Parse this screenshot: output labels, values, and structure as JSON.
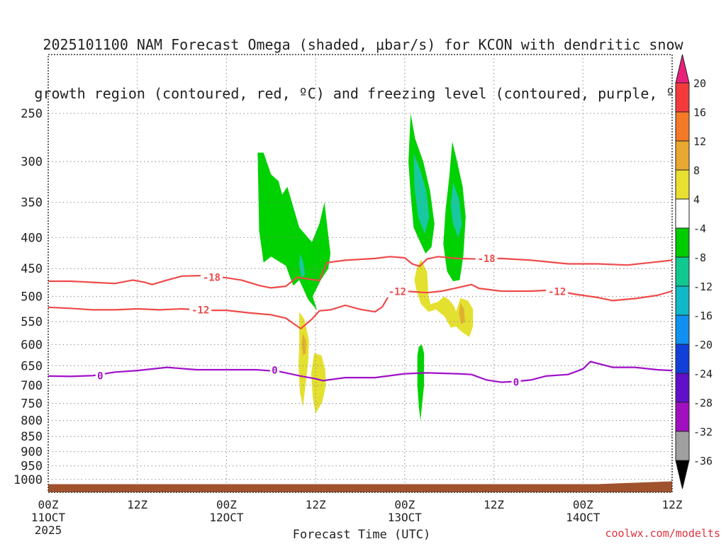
{
  "title": {
    "line1": "2025101100 NAM Forecast Omega (shaded, μbar/s) for KCON with dendritic snow",
    "line2": "growth region (contoured, red, ºC) and freezing level (contoured, purple, ºC)"
  },
  "footer": {
    "credit": "coolwx.com/modelts"
  },
  "chart_data": {
    "type": "heatmap",
    "title": "2025101100 NAM Forecast Omega (shaded, μbar/s) for KCON with dendritic snow growth region (contoured, red, ºC) and freezing level (contoured, purple, ºC)",
    "xlabel": "Forecast Time (UTC)",
    "ylabel": "",
    "x_range_hours": [
      0,
      84
    ],
    "y_range_hpa": [
      200,
      1050
    ],
    "y_scale": "log",
    "grid": true,
    "x_ticks": [
      {
        "hour": 0,
        "label": "00Z",
        "sub": "11OCT",
        "sub2": "2025"
      },
      {
        "hour": 12,
        "label": "12Z",
        "sub": "",
        "sub2": ""
      },
      {
        "hour": 24,
        "label": "00Z",
        "sub": "12OCT",
        "sub2": ""
      },
      {
        "hour": 36,
        "label": "12Z",
        "sub": "",
        "sub2": ""
      },
      {
        "hour": 48,
        "label": "00Z",
        "sub": "13OCT",
        "sub2": ""
      },
      {
        "hour": 60,
        "label": "12Z",
        "sub": "",
        "sub2": ""
      },
      {
        "hour": 72,
        "label": "00Z",
        "sub": "14OCT",
        "sub2": ""
      },
      {
        "hour": 84,
        "label": "12Z",
        "sub": "",
        "sub2": ""
      }
    ],
    "y_ticks": [
      250,
      300,
      350,
      400,
      450,
      500,
      550,
      600,
      650,
      700,
      750,
      800,
      850,
      900,
      950,
      1000
    ],
    "colorbar": {
      "labels": [
        "20",
        "16",
        "12",
        "8",
        "4",
        "-4",
        "-8",
        "-12",
        "-16",
        "-20",
        "-24",
        "-28",
        "-32",
        "-36"
      ],
      "colors": [
        "#e8207a",
        "#f43b3b",
        "#f57a28",
        "#e8a830",
        "#e8e030",
        "#ffffff",
        "#00cc00",
        "#10c890",
        "#10b8c8",
        "#1090f0",
        "#1040d8",
        "#6010c8",
        "#a010c0",
        "#a0a0a0",
        "#000000"
      ]
    },
    "shading_colors": {
      "green": "#00d100",
      "teal": "#18c8a0",
      "cyan": "#10b8c8",
      "yellow": "#e4e030",
      "gold": "#e0b030",
      "orange": "#f08a20"
    },
    "contour_colors": {
      "dgz": "#ef4a4a",
      "freezing": "#a010c8"
    },
    "ground_color": "#a0522d",
    "contours": [
      {
        "label": "-18",
        "color": "dgz",
        "points": [
          [
            0,
            472
          ],
          [
            3,
            472
          ],
          [
            6,
            474
          ],
          [
            9,
            476
          ],
          [
            11.4,
            470
          ],
          [
            13,
            474
          ],
          [
            14,
            478
          ],
          [
            16,
            470
          ],
          [
            18,
            463
          ],
          [
            21,
            462
          ],
          [
            24,
            466
          ],
          [
            26,
            470
          ],
          [
            28.5,
            480
          ],
          [
            30,
            484
          ],
          [
            32,
            481
          ],
          [
            33.5,
            465
          ],
          [
            35.5,
            469
          ],
          [
            36.5,
            471
          ],
          [
            37.5,
            440
          ],
          [
            40,
            436
          ],
          [
            44,
            433
          ],
          [
            46,
            430
          ],
          [
            48,
            432
          ],
          [
            49,
            442
          ],
          [
            50,
            446
          ],
          [
            51,
            434
          ],
          [
            52.5,
            430
          ],
          [
            55,
            433
          ],
          [
            58,
            434
          ],
          [
            61,
            433
          ],
          [
            65,
            436
          ],
          [
            70,
            442
          ],
          [
            74,
            442
          ],
          [
            78,
            444
          ],
          [
            81,
            440
          ],
          [
            84,
            436
          ]
        ],
        "label_positions": [
          [
            22,
            465
          ],
          [
            59,
            433
          ]
        ]
      },
      {
        "label": "-12",
        "color": "dgz",
        "points": [
          [
            0,
            521
          ],
          [
            3,
            523
          ],
          [
            6,
            526
          ],
          [
            9,
            526
          ],
          [
            12,
            524
          ],
          [
            15,
            526
          ],
          [
            18,
            524
          ],
          [
            21,
            527
          ],
          [
            24,
            527
          ],
          [
            27,
            532
          ],
          [
            30,
            536
          ],
          [
            32,
            543
          ],
          [
            34,
            565
          ],
          [
            35.5,
            545
          ],
          [
            36.5,
            528
          ],
          [
            38,
            526
          ],
          [
            40,
            517
          ],
          [
            42,
            525
          ],
          [
            44,
            530
          ],
          [
            45,
            520
          ],
          [
            46,
            495
          ],
          [
            48,
            490
          ],
          [
            50,
            492
          ],
          [
            51,
            493
          ],
          [
            53,
            490
          ],
          [
            55,
            484
          ],
          [
            57,
            478
          ],
          [
            58,
            485
          ],
          [
            61,
            490
          ],
          [
            65,
            490
          ],
          [
            68,
            488
          ],
          [
            71,
            496
          ],
          [
            74,
            502
          ],
          [
            76,
            508
          ],
          [
            79,
            504
          ],
          [
            82,
            498
          ],
          [
            84,
            490
          ]
        ],
        "label_positions": [
          [
            20.5,
            526
          ],
          [
            47,
            491
          ],
          [
            68.5,
            491
          ]
        ]
      },
      {
        "label": "0",
        "color": "freezing",
        "points": [
          [
            0,
            676
          ],
          [
            3,
            677
          ],
          [
            6,
            675
          ],
          [
            9,
            666
          ],
          [
            12,
            662
          ],
          [
            16,
            654
          ],
          [
            20,
            660
          ],
          [
            24,
            660
          ],
          [
            28,
            660
          ],
          [
            31,
            664
          ],
          [
            34,
            676
          ],
          [
            36,
            683
          ],
          [
            37,
            688
          ],
          [
            40,
            680
          ],
          [
            44,
            680
          ],
          [
            48,
            670
          ],
          [
            51,
            668
          ],
          [
            55,
            670
          ],
          [
            57,
            672
          ],
          [
            59,
            686
          ],
          [
            61,
            692
          ],
          [
            63,
            690
          ],
          [
            65,
            686
          ],
          [
            67,
            676
          ],
          [
            70,
            672
          ],
          [
            72,
            658
          ],
          [
            73,
            640
          ],
          [
            76,
            654
          ],
          [
            79,
            654
          ],
          [
            82,
            660
          ],
          [
            84,
            662
          ]
        ],
        "label_positions": [
          [
            7,
            675
          ],
          [
            30.5,
            661
          ],
          [
            63,
            692
          ]
        ]
      }
    ],
    "omega_regions": [
      {
        "color": "green",
        "points": [
          [
            28.2,
            290
          ],
          [
            29,
            290
          ],
          [
            30,
            315
          ],
          [
            31,
            323
          ],
          [
            31.5,
            340
          ],
          [
            32.2,
            330
          ],
          [
            33.8,
            385
          ],
          [
            35.5,
            407
          ],
          [
            36.5,
            380
          ],
          [
            37.2,
            350
          ],
          [
            37.5,
            378
          ],
          [
            38,
            425
          ],
          [
            37.7,
            450
          ],
          [
            36.7,
            470
          ],
          [
            35.6,
            500
          ],
          [
            36.2,
            527
          ],
          [
            35,
            506
          ],
          [
            33.8,
            470
          ],
          [
            33,
            480
          ],
          [
            32.7,
            470
          ],
          [
            32,
            445
          ],
          [
            30,
            430
          ],
          [
            29,
            440
          ],
          [
            28.4,
            390
          ]
        ]
      },
      {
        "color": "teal",
        "points": [
          [
            33.9,
            425
          ],
          [
            34.3,
            437
          ],
          [
            34.6,
            460
          ],
          [
            34.1,
            466
          ],
          [
            33.8,
            445
          ]
        ]
      },
      {
        "color": "green",
        "points": [
          [
            48.8,
            250
          ],
          [
            49.4,
            275
          ],
          [
            50.5,
            300
          ],
          [
            51.4,
            335
          ],
          [
            52,
            380
          ],
          [
            51.6,
            415
          ],
          [
            50.8,
            425
          ],
          [
            50,
            405
          ],
          [
            49.2,
            385
          ],
          [
            48.8,
            340
          ],
          [
            48.5,
            300
          ]
        ]
      },
      {
        "color": "teal",
        "points": [
          [
            49.2,
            290
          ],
          [
            50.1,
            310
          ],
          [
            50.9,
            335
          ],
          [
            51.3,
            370
          ],
          [
            50.7,
            395
          ],
          [
            49.8,
            370
          ],
          [
            49.3,
            330
          ]
        ]
      },
      {
        "color": "green",
        "points": [
          [
            54.4,
            278
          ],
          [
            55,
            298
          ],
          [
            55.8,
            330
          ],
          [
            56.2,
            370
          ],
          [
            55.9,
            428
          ],
          [
            55.4,
            470
          ],
          [
            54.5,
            472
          ],
          [
            53.7,
            455
          ],
          [
            53.2,
            410
          ],
          [
            53.5,
            360
          ],
          [
            54,
            318
          ]
        ]
      },
      {
        "color": "teal",
        "points": [
          [
            54.5,
            325
          ],
          [
            55.3,
            345
          ],
          [
            55.7,
            380
          ],
          [
            55.2,
            400
          ],
          [
            54.5,
            380
          ],
          [
            54.2,
            355
          ]
        ]
      },
      {
        "color": "green",
        "points": [
          [
            50.3,
            600
          ],
          [
            50.6,
            620
          ],
          [
            50.6,
            700
          ],
          [
            50.3,
            760
          ],
          [
            50.1,
            800
          ],
          [
            49.9,
            760
          ],
          [
            49.7,
            700
          ],
          [
            49.7,
            625
          ],
          [
            49.9,
            605
          ]
        ]
      },
      {
        "color": "yellow",
        "points": [
          [
            33.8,
            530
          ],
          [
            34.5,
            545
          ],
          [
            35.1,
            590
          ],
          [
            35,
            640
          ],
          [
            34.7,
            690
          ],
          [
            34.3,
            760
          ],
          [
            33.9,
            720
          ],
          [
            33.7,
            650
          ],
          [
            33.8,
            600
          ]
        ]
      },
      {
        "color": "gold",
        "points": [
          [
            34.3,
            575
          ],
          [
            34.7,
            590
          ],
          [
            34.7,
            620
          ],
          [
            34.3,
            625
          ],
          [
            34.1,
            600
          ]
        ]
      },
      {
        "color": "yellow",
        "points": [
          [
            35.8,
            620
          ],
          [
            36.8,
            625
          ],
          [
            37.3,
            660
          ],
          [
            37.4,
            700
          ],
          [
            36.9,
            745
          ],
          [
            36,
            780
          ],
          [
            35.6,
            730
          ],
          [
            35.4,
            670
          ]
        ]
      },
      {
        "color": "yellow",
        "points": [
          [
            50.2,
            435
          ],
          [
            51,
            455
          ],
          [
            51.2,
            500
          ],
          [
            51.5,
            515
          ],
          [
            52.5,
            510
          ],
          [
            53.3,
            500
          ],
          [
            54,
            507
          ],
          [
            54.7,
            520
          ],
          [
            54.9,
            530
          ],
          [
            55.5,
            503
          ],
          [
            56.5,
            508
          ],
          [
            57.2,
            525
          ],
          [
            57.2,
            560
          ],
          [
            56.7,
            583
          ],
          [
            55.7,
            572
          ],
          [
            54.9,
            560
          ],
          [
            54.2,
            563
          ],
          [
            53.4,
            540
          ],
          [
            52.2,
            525
          ],
          [
            51.2,
            530
          ],
          [
            50.2,
            515
          ],
          [
            49.6,
            490
          ],
          [
            49.3,
            470
          ],
          [
            49.6,
            450
          ]
        ]
      },
      {
        "color": "gold",
        "points": [
          [
            55.5,
            512
          ],
          [
            56,
            525
          ],
          [
            56.1,
            550
          ],
          [
            55.6,
            556
          ],
          [
            55.3,
            533
          ]
        ]
      }
    ]
  }
}
